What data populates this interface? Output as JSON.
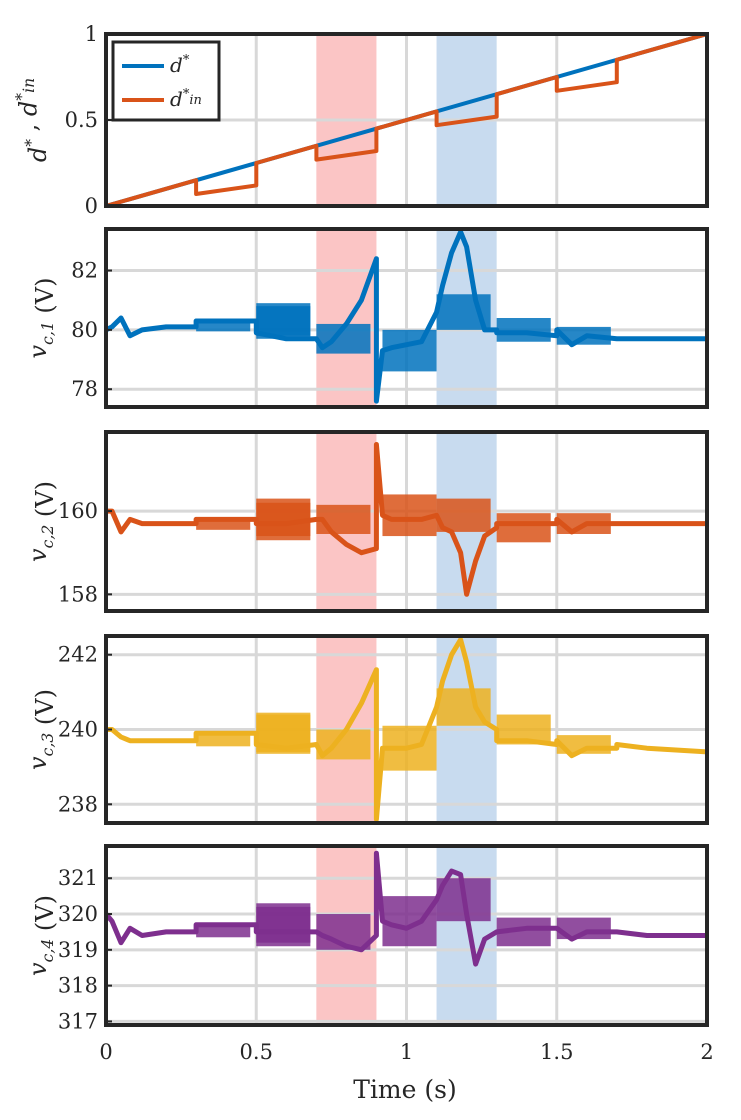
{
  "figure": {
    "xlabel": "Time (s)",
    "xlim": [
      0,
      2
    ],
    "xticks": [
      0,
      0.5,
      1,
      1.5,
      2
    ],
    "xtick_labels": [
      "0",
      "0.5",
      "1",
      "1.5",
      "2"
    ],
    "shaded_regions": [
      {
        "x0": 0.7,
        "x1": 0.9,
        "color": "#f9b1b1"
      },
      {
        "x0": 1.1,
        "x1": 1.3,
        "color": "#b5cfe9"
      }
    ]
  },
  "chart_data": [
    {
      "type": "line",
      "ylabel": "d*, d*in",
      "ylim": [
        0,
        1
      ],
      "yticks": [
        0,
        0.5,
        1
      ],
      "ytick_labels": [
        "0",
        "0.5",
        "1"
      ],
      "grid": true,
      "legend": {
        "placement": "top-left",
        "entries": [
          "d*",
          "d*in"
        ]
      },
      "series": [
        {
          "name": "d*",
          "color": "#0072bd",
          "x": [
            0,
            2
          ],
          "y": [
            0,
            1
          ]
        },
        {
          "name": "d*in",
          "color": "#d95319",
          "x": [
            0,
            0.3,
            0.3,
            0.5,
            0.5,
            0.7,
            0.7,
            0.9,
            0.9,
            1.1,
            1.1,
            1.3,
            1.3,
            1.5,
            1.5,
            1.7,
            1.7,
            2.0
          ],
          "y": [
            0,
            0.15,
            0.07,
            0.12,
            0.25,
            0.35,
            0.27,
            0.32,
            0.45,
            0.55,
            0.47,
            0.52,
            0.65,
            0.75,
            0.67,
            0.72,
            0.85,
            1.0
          ]
        }
      ]
    },
    {
      "type": "line",
      "ylabel": "vc,1 (V)",
      "ylim": [
        77.4,
        83.4
      ],
      "yticks": [
        78,
        80,
        82
      ],
      "ytick_labels": [
        "78",
        "80",
        "82"
      ],
      "grid": true,
      "series": [
        {
          "name": "vc,1",
          "color": "#0072bd",
          "x": [
            0,
            0.02,
            0.05,
            0.08,
            0.12,
            0.2,
            0.3,
            0.3,
            0.4,
            0.5,
            0.5,
            0.6,
            0.7,
            0.72,
            0.75,
            0.8,
            0.85,
            0.9,
            0.9,
            0.92,
            0.95,
            1.0,
            1.05,
            1.1,
            1.12,
            1.15,
            1.18,
            1.2,
            1.23,
            1.26,
            1.3,
            1.3,
            1.4,
            1.5,
            1.5,
            1.55,
            1.6,
            1.7,
            1.7,
            1.8,
            2.0
          ],
          "y": [
            80.0,
            80.1,
            80.4,
            79.8,
            80.0,
            80.1,
            80.1,
            80.3,
            80.3,
            80.3,
            79.9,
            79.7,
            79.7,
            79.4,
            79.6,
            80.2,
            81.0,
            82.4,
            77.6,
            79.3,
            79.4,
            79.5,
            79.6,
            80.6,
            81.5,
            82.6,
            83.3,
            82.8,
            81.0,
            80.0,
            80.0,
            79.9,
            79.9,
            79.8,
            80.0,
            79.5,
            79.8,
            79.7,
            79.7,
            79.7,
            79.7
          ],
          "band": {
            "centers": [
              0.3,
              0.5,
              0.5,
              0.7,
              0.92,
              1.1,
              1.3,
              1.5
            ],
            "widths": [
              0.3,
              1.0,
              1.2,
              1.0,
              1.4,
              1.2,
              0.8,
              0.6
            ]
          }
        }
      ]
    },
    {
      "type": "line",
      "ylabel": "vc,2 (V)",
      "ylim": [
        157.6,
        161.9
      ],
      "yticks": [
        158,
        160
      ],
      "ytick_labels": [
        "158",
        "160"
      ],
      "grid": true,
      "series": [
        {
          "name": "vc,2",
          "color": "#d95319",
          "x": [
            0,
            0.02,
            0.05,
            0.08,
            0.12,
            0.2,
            0.3,
            0.3,
            0.4,
            0.5,
            0.5,
            0.6,
            0.7,
            0.72,
            0.75,
            0.8,
            0.85,
            0.9,
            0.9,
            0.92,
            0.95,
            1.0,
            1.05,
            1.1,
            1.12,
            1.15,
            1.18,
            1.2,
            1.23,
            1.26,
            1.3,
            1.3,
            1.4,
            1.5,
            1.5,
            1.55,
            1.6,
            1.7,
            1.7,
            1.8,
            2.0
          ],
          "y": [
            160.0,
            160.0,
            159.5,
            159.8,
            159.7,
            159.7,
            159.7,
            159.8,
            159.8,
            159.8,
            159.7,
            159.7,
            159.8,
            159.8,
            159.5,
            159.2,
            159.0,
            159.1,
            161.6,
            159.9,
            159.8,
            159.8,
            159.8,
            159.9,
            159.6,
            159.5,
            159.0,
            158.0,
            158.8,
            159.4,
            159.6,
            159.7,
            159.7,
            159.7,
            159.8,
            159.5,
            159.7,
            159.7,
            159.7,
            159.7,
            159.7
          ],
          "band": {
            "centers": [
              0.3,
              0.5,
              0.5,
              0.7,
              0.92,
              1.1,
              1.3,
              1.5
            ],
            "widths": [
              0.3,
              0.8,
              1.0,
              0.7,
              1.0,
              0.8,
              0.7,
              0.5
            ]
          }
        }
      ]
    },
    {
      "type": "line",
      "ylabel": "vc,3 (V)",
      "ylim": [
        237.5,
        242.5
      ],
      "yticks": [
        238,
        240,
        242
      ],
      "ytick_labels": [
        "238",
        "240",
        "242"
      ],
      "grid": true,
      "series": [
        {
          "name": "vc,3",
          "color": "#edb120",
          "x": [
            0,
            0.02,
            0.05,
            0.08,
            0.12,
            0.2,
            0.3,
            0.3,
            0.4,
            0.5,
            0.5,
            0.6,
            0.7,
            0.72,
            0.75,
            0.8,
            0.85,
            0.9,
            0.9,
            0.92,
            0.95,
            1.0,
            1.05,
            1.1,
            1.12,
            1.15,
            1.18,
            1.2,
            1.23,
            1.26,
            1.3,
            1.3,
            1.4,
            1.5,
            1.5,
            1.55,
            1.6,
            1.7,
            1.7,
            1.8,
            2.0
          ],
          "y": [
            240.0,
            240.0,
            239.8,
            239.7,
            239.7,
            239.7,
            239.7,
            239.9,
            239.9,
            239.9,
            239.6,
            239.5,
            239.6,
            239.3,
            239.5,
            240.0,
            240.7,
            241.6,
            237.6,
            239.5,
            239.5,
            239.5,
            239.6,
            240.6,
            241.3,
            242.0,
            242.4,
            241.8,
            240.6,
            240.2,
            240.0,
            239.7,
            239.7,
            239.6,
            239.7,
            239.3,
            239.5,
            239.5,
            239.6,
            239.5,
            239.4
          ],
          "band": {
            "centers": [
              0.3,
              0.5,
              0.5,
              0.7,
              0.92,
              1.1,
              1.3,
              1.5
            ],
            "widths": [
              0.3,
              1.0,
              1.1,
              0.8,
              1.2,
              1.0,
              0.8,
              0.5
            ]
          }
        }
      ]
    },
    {
      "type": "line",
      "ylabel": "vc,4 (V)",
      "ylim": [
        316.9,
        321.9
      ],
      "yticks": [
        317,
        318,
        319,
        320,
        321
      ],
      "ytick_labels": [
        "317",
        "318",
        "319",
        "320",
        "321"
      ],
      "grid": true,
      "series": [
        {
          "name": "vc,4",
          "color": "#7e2f8e",
          "x": [
            0,
            0.02,
            0.05,
            0.08,
            0.12,
            0.2,
            0.3,
            0.3,
            0.4,
            0.5,
            0.5,
            0.6,
            0.7,
            0.72,
            0.75,
            0.8,
            0.85,
            0.9,
            0.9,
            0.92,
            0.95,
            1.0,
            1.05,
            1.1,
            1.12,
            1.15,
            1.18,
            1.2,
            1.23,
            1.26,
            1.3,
            1.3,
            1.4,
            1.5,
            1.5,
            1.55,
            1.6,
            1.7,
            1.7,
            1.8,
            2.0
          ],
          "y": [
            320.0,
            319.8,
            319.2,
            319.6,
            319.4,
            319.5,
            319.5,
            319.7,
            319.7,
            319.7,
            319.5,
            319.5,
            319.5,
            319.4,
            319.3,
            319.1,
            319.0,
            319.4,
            321.7,
            319.8,
            319.7,
            319.6,
            319.8,
            320.4,
            320.8,
            321.2,
            321.1,
            320.0,
            318.6,
            319.3,
            319.5,
            319.5,
            319.6,
            319.6,
            319.6,
            319.3,
            319.5,
            319.5,
            319.5,
            319.4,
            319.4
          ],
          "band": {
            "centers": [
              0.3,
              0.5,
              0.5,
              0.7,
              0.92,
              1.1,
              1.3,
              1.5
            ],
            "widths": [
              0.3,
              1.0,
              1.2,
              1.0,
              1.4,
              1.2,
              0.8,
              0.6
            ]
          }
        }
      ]
    }
  ]
}
